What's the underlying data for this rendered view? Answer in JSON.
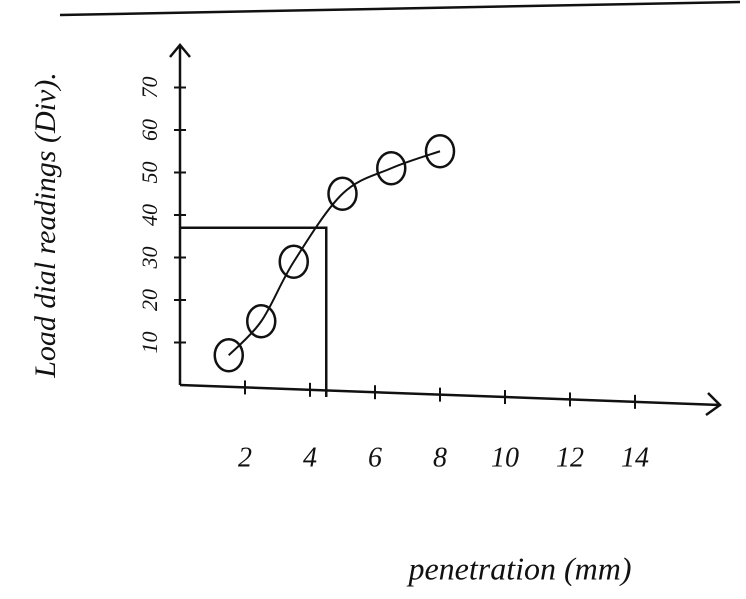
{
  "chart_data": {
    "type": "line",
    "x_label": "penetration (mm)",
    "y_label": "Load dial readings (Div).",
    "x": [
      1.5,
      2.5,
      3.5,
      5,
      6.5,
      8
    ],
    "values": [
      7,
      15,
      29,
      45,
      51,
      55
    ],
    "color": "#111111",
    "marker": "circle",
    "guide_point": {
      "x": 4.5,
      "y": 37
    },
    "xlim": [
      0,
      16
    ],
    "ylim": [
      0,
      80
    ],
    "xticks": [
      2,
      4,
      6,
      8,
      10,
      12,
      14
    ],
    "yticks": [
      10,
      20,
      30,
      40,
      50,
      60,
      70
    ]
  }
}
